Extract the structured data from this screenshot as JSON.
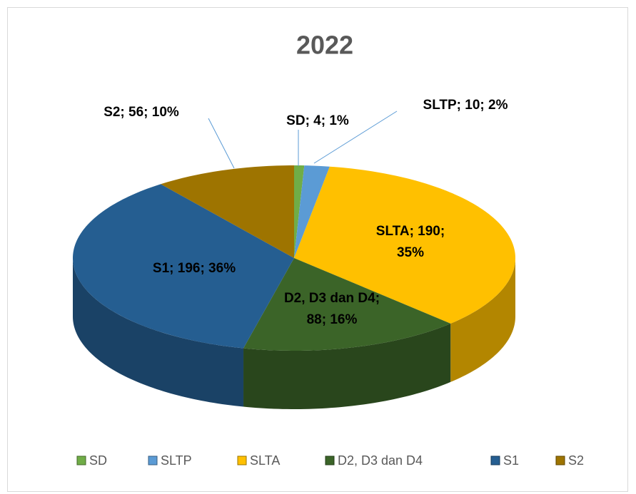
{
  "chart_data": {
    "type": "pie",
    "title": "2022",
    "categories": [
      "SD",
      "SLTP",
      "SLTA",
      "D2, D3 dan D4",
      "S1",
      "S2"
    ],
    "values": [
      4,
      10,
      190,
      88,
      196,
      56
    ],
    "value_labels": [
      "SD; 4; 1%",
      "SLTP; 10; 2%",
      "SLTA; 190; 35%",
      "D2, D3 dan D4; 88; 16%",
      "S1; 196; 36%",
      "S2; 56; 10%"
    ],
    "colors": [
      "#70ad47",
      "#5b9bd5",
      "#ffc000",
      "#3b6428",
      "#255e91",
      "#9e7400"
    ],
    "legend": "bottom"
  }
}
